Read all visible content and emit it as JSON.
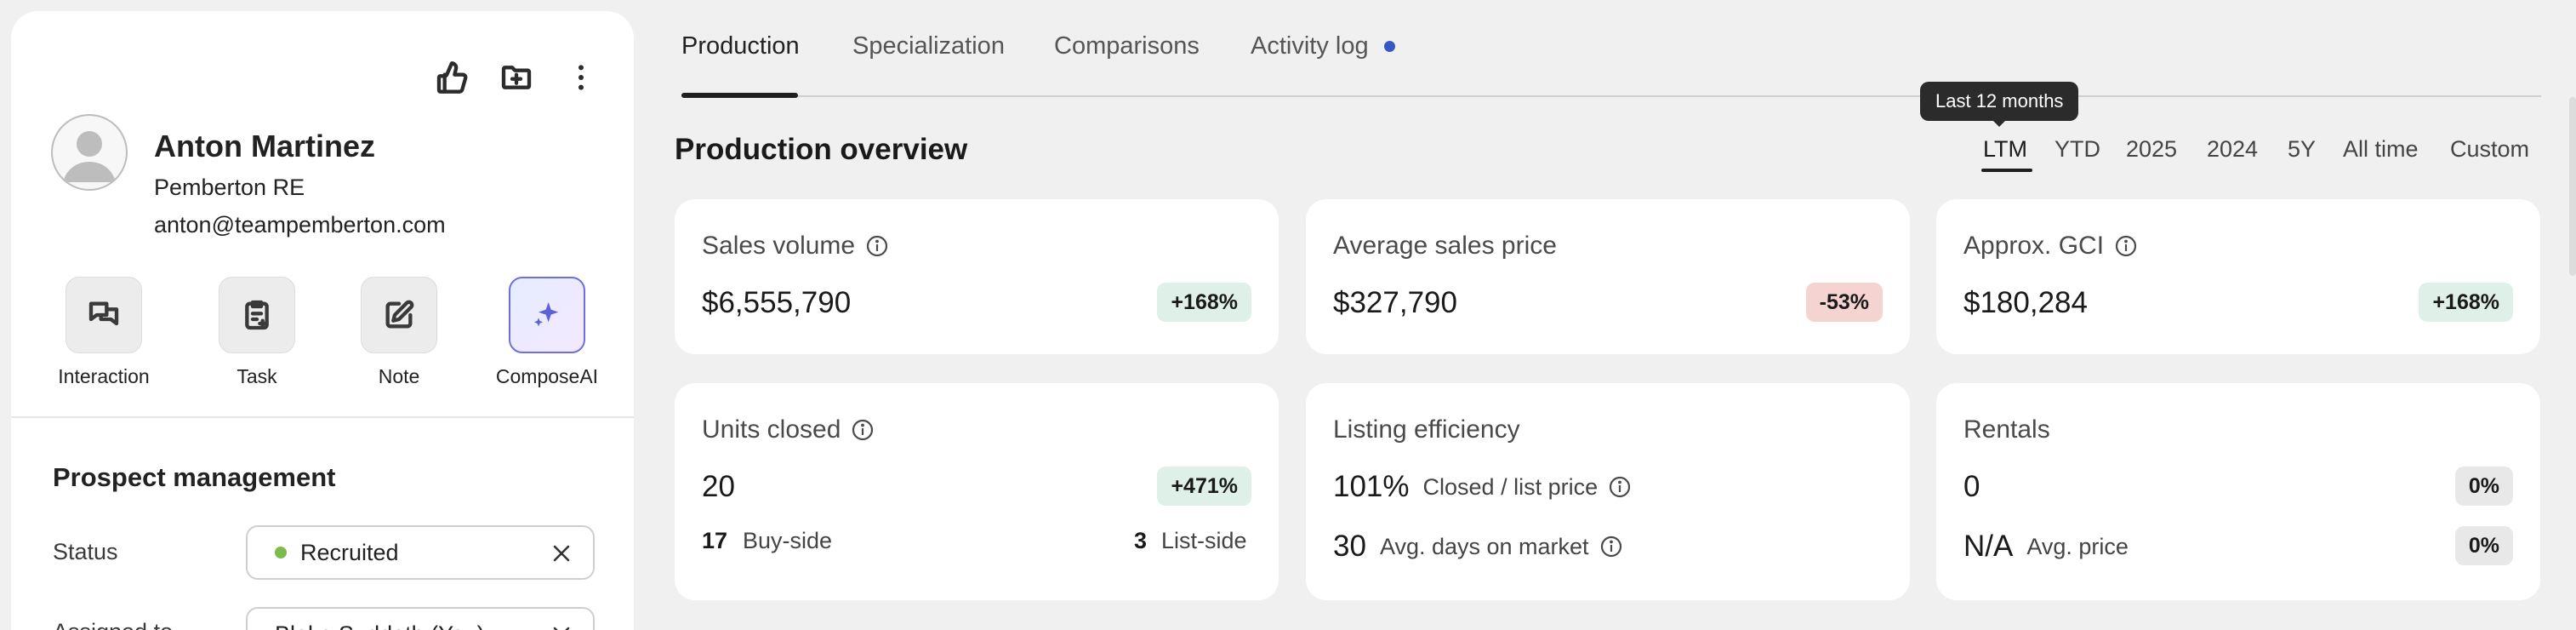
{
  "profile": {
    "name": "Anton Martinez",
    "company": "Pemberton RE",
    "email": "anton@teampemberton.com"
  },
  "top_actions": {
    "like_icon": "thumbs-up-icon",
    "folder_icon": "folder-plus-icon",
    "more_icon": "more-vertical-icon"
  },
  "quick_actions": [
    {
      "label": "Interaction",
      "icon": "chat-icon"
    },
    {
      "label": "Task",
      "icon": "task-icon"
    },
    {
      "label": "Note",
      "icon": "edit-icon"
    },
    {
      "label": "ComposeAI",
      "icon": "sparkle-icon"
    }
  ],
  "prospect_management": {
    "title": "Prospect management",
    "status_label": "Status",
    "status_value": "Recruited",
    "status_color": "#7dbb4a",
    "assigned_label": "Assigned to",
    "assigned_value": "Blake Suddath (You)"
  },
  "tabs": [
    {
      "label": "Production",
      "active": true
    },
    {
      "label": "Specialization",
      "active": false
    },
    {
      "label": "Comparisons",
      "active": false
    },
    {
      "label": "Activity log",
      "active": false,
      "indicator_color": "#3857c6"
    }
  ],
  "overview": {
    "title": "Production overview",
    "tooltip": "Last 12 months",
    "periods": [
      "LTM",
      "YTD",
      "2025",
      "2024",
      "5Y",
      "All time",
      "Custom"
    ],
    "active_period": "LTM"
  },
  "cards": {
    "sales_volume": {
      "title": "Sales volume",
      "value": "$6,555,790",
      "badge": "+168%"
    },
    "avg_sales_price": {
      "title": "Average sales price",
      "value": "$327,790",
      "badge": "-53%"
    },
    "approx_gci": {
      "title": "Approx. GCI",
      "value": "$180,284",
      "badge": "+168%"
    },
    "units_closed": {
      "title": "Units closed",
      "value": "20",
      "badge": "+471%",
      "buy_side_count": "17",
      "buy_side_label": "Buy-side",
      "list_side_count": "3",
      "list_side_label": "List-side"
    },
    "listing_efficiency": {
      "title": "Listing efficiency",
      "ratio_value": "101%",
      "ratio_label": "Closed / list price",
      "days_value": "30",
      "days_label": "Avg. days on market"
    },
    "rentals": {
      "title": "Rentals",
      "value": "0",
      "badge": "0%",
      "avg_price_value": "N/A",
      "avg_price_label": "Avg. price",
      "avg_price_badge": "0%"
    }
  },
  "colors": {
    "positive_badge": "#dff0e8",
    "negative_badge": "#f5d3d1",
    "neutral_badge": "#e8e8e8",
    "accent": "#5b63d6"
  }
}
